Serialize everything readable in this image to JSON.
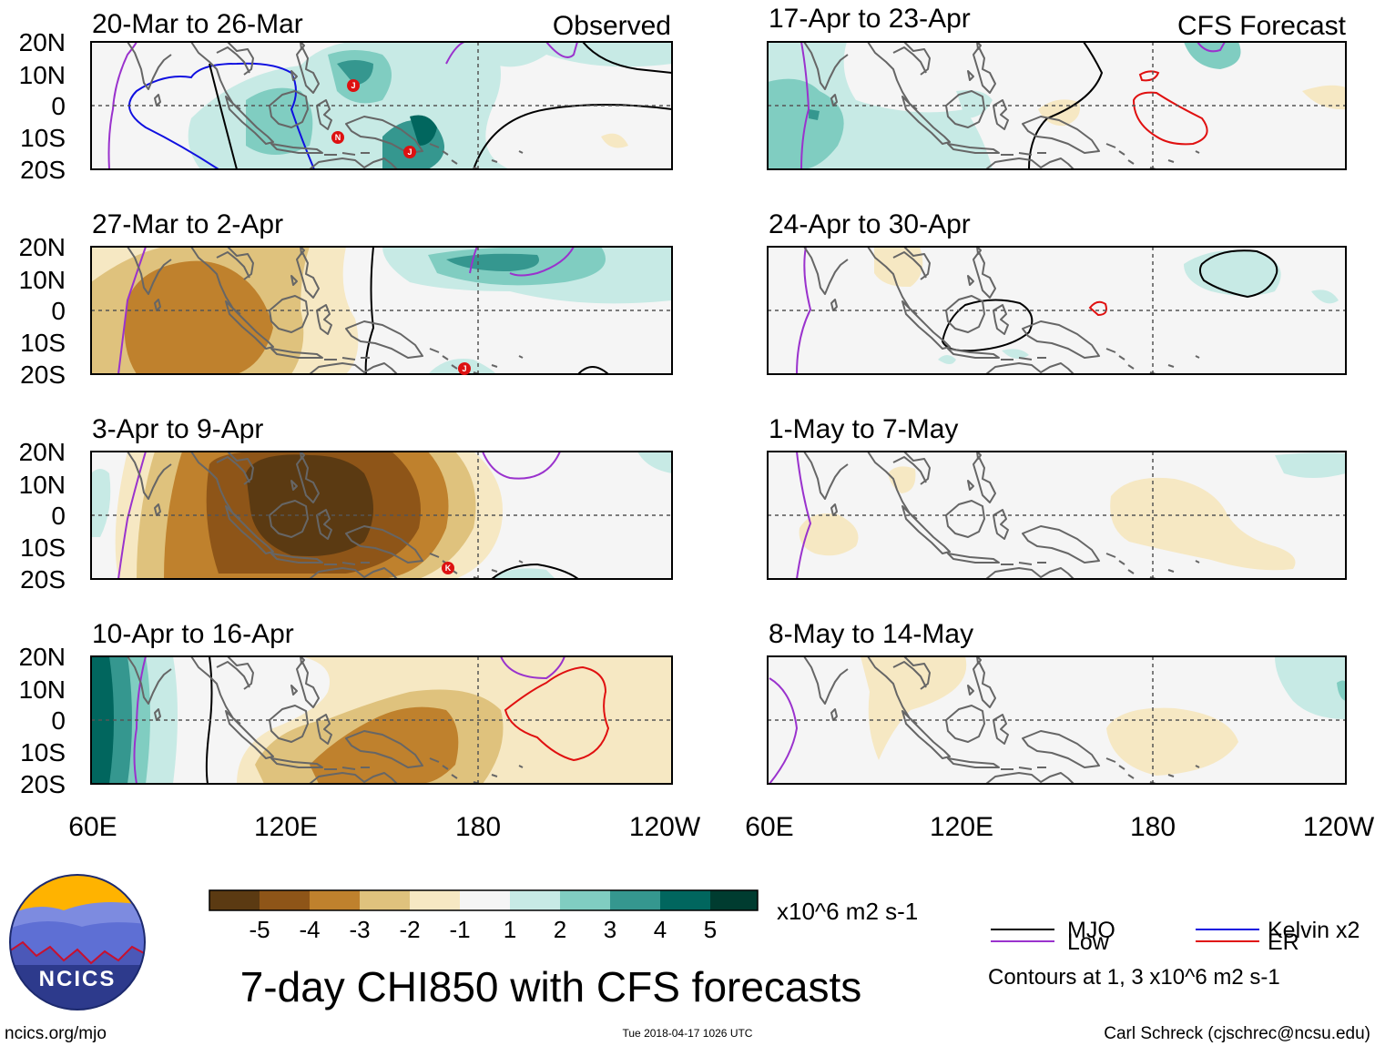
{
  "panels": {
    "left": [
      {
        "period": "20-Mar to 26-Mar",
        "tag": "Observed"
      },
      {
        "period": "27-Mar to 2-Apr",
        "tag": ""
      },
      {
        "period": "3-Apr to 9-Apr",
        "tag": ""
      },
      {
        "period": "10-Apr to 16-Apr",
        "tag": ""
      }
    ],
    "right": [
      {
        "period": "17-Apr to 23-Apr",
        "tag": "CFS Forecast"
      },
      {
        "period": "24-Apr to 30-Apr",
        "tag": ""
      },
      {
        "period": "1-May to 7-May",
        "tag": ""
      },
      {
        "period": "8-May to 14-May",
        "tag": ""
      }
    ]
  },
  "axes": {
    "lat_labels": [
      "20N",
      "10N",
      "0",
      "10S",
      "20S"
    ],
    "lon_labels": [
      "60E",
      "120E",
      "180",
      "120W"
    ]
  },
  "storm_markers": {
    "panel1": [
      "J",
      "N",
      "J"
    ],
    "panel2": [
      "J"
    ],
    "panel3": [
      "K"
    ]
  },
  "colorbar": {
    "labels": [
      "-5",
      "-4",
      "-3",
      "-2",
      "-1",
      "1",
      "2",
      "3",
      "4",
      "5"
    ],
    "colors": [
      "#5b3a12",
      "#8e5518",
      "#bf812d",
      "#dfc27d",
      "#f6e8c3",
      "#f5f5f5",
      "#c7eae5",
      "#80cdc1",
      "#35978f",
      "#01665e",
      "#003c30"
    ],
    "units": "x10^6 m2 s-1"
  },
  "title": "7-day CHI850 with CFS forecasts",
  "legend": {
    "items": [
      {
        "label": "MJO",
        "color": "#000000"
      },
      {
        "label": "Low",
        "color": "#9a32cd"
      },
      {
        "label": "Kelvin x2",
        "color": "#1010e0"
      },
      {
        "label": "ER",
        "color": "#e01010"
      }
    ],
    "note": "Contours at 1, 3 x10^6 m2 s-1"
  },
  "logo": {
    "text": "NCICS"
  },
  "footer": {
    "url": "ncics.org/mjo",
    "timestamp": "Tue 2018-04-17 1026 UTC",
    "credit": "Carl Schreck (cjschrec@ncsu.edu)"
  },
  "colors": {
    "dry_strong": "#5b3a12",
    "dry_mid": "#bf812d",
    "dry_weak": "#f6e8c3",
    "wet_weak": "#c7eae5",
    "wet_mid": "#80cdc1",
    "wet_strong": "#35978f",
    "land": "#666666"
  }
}
